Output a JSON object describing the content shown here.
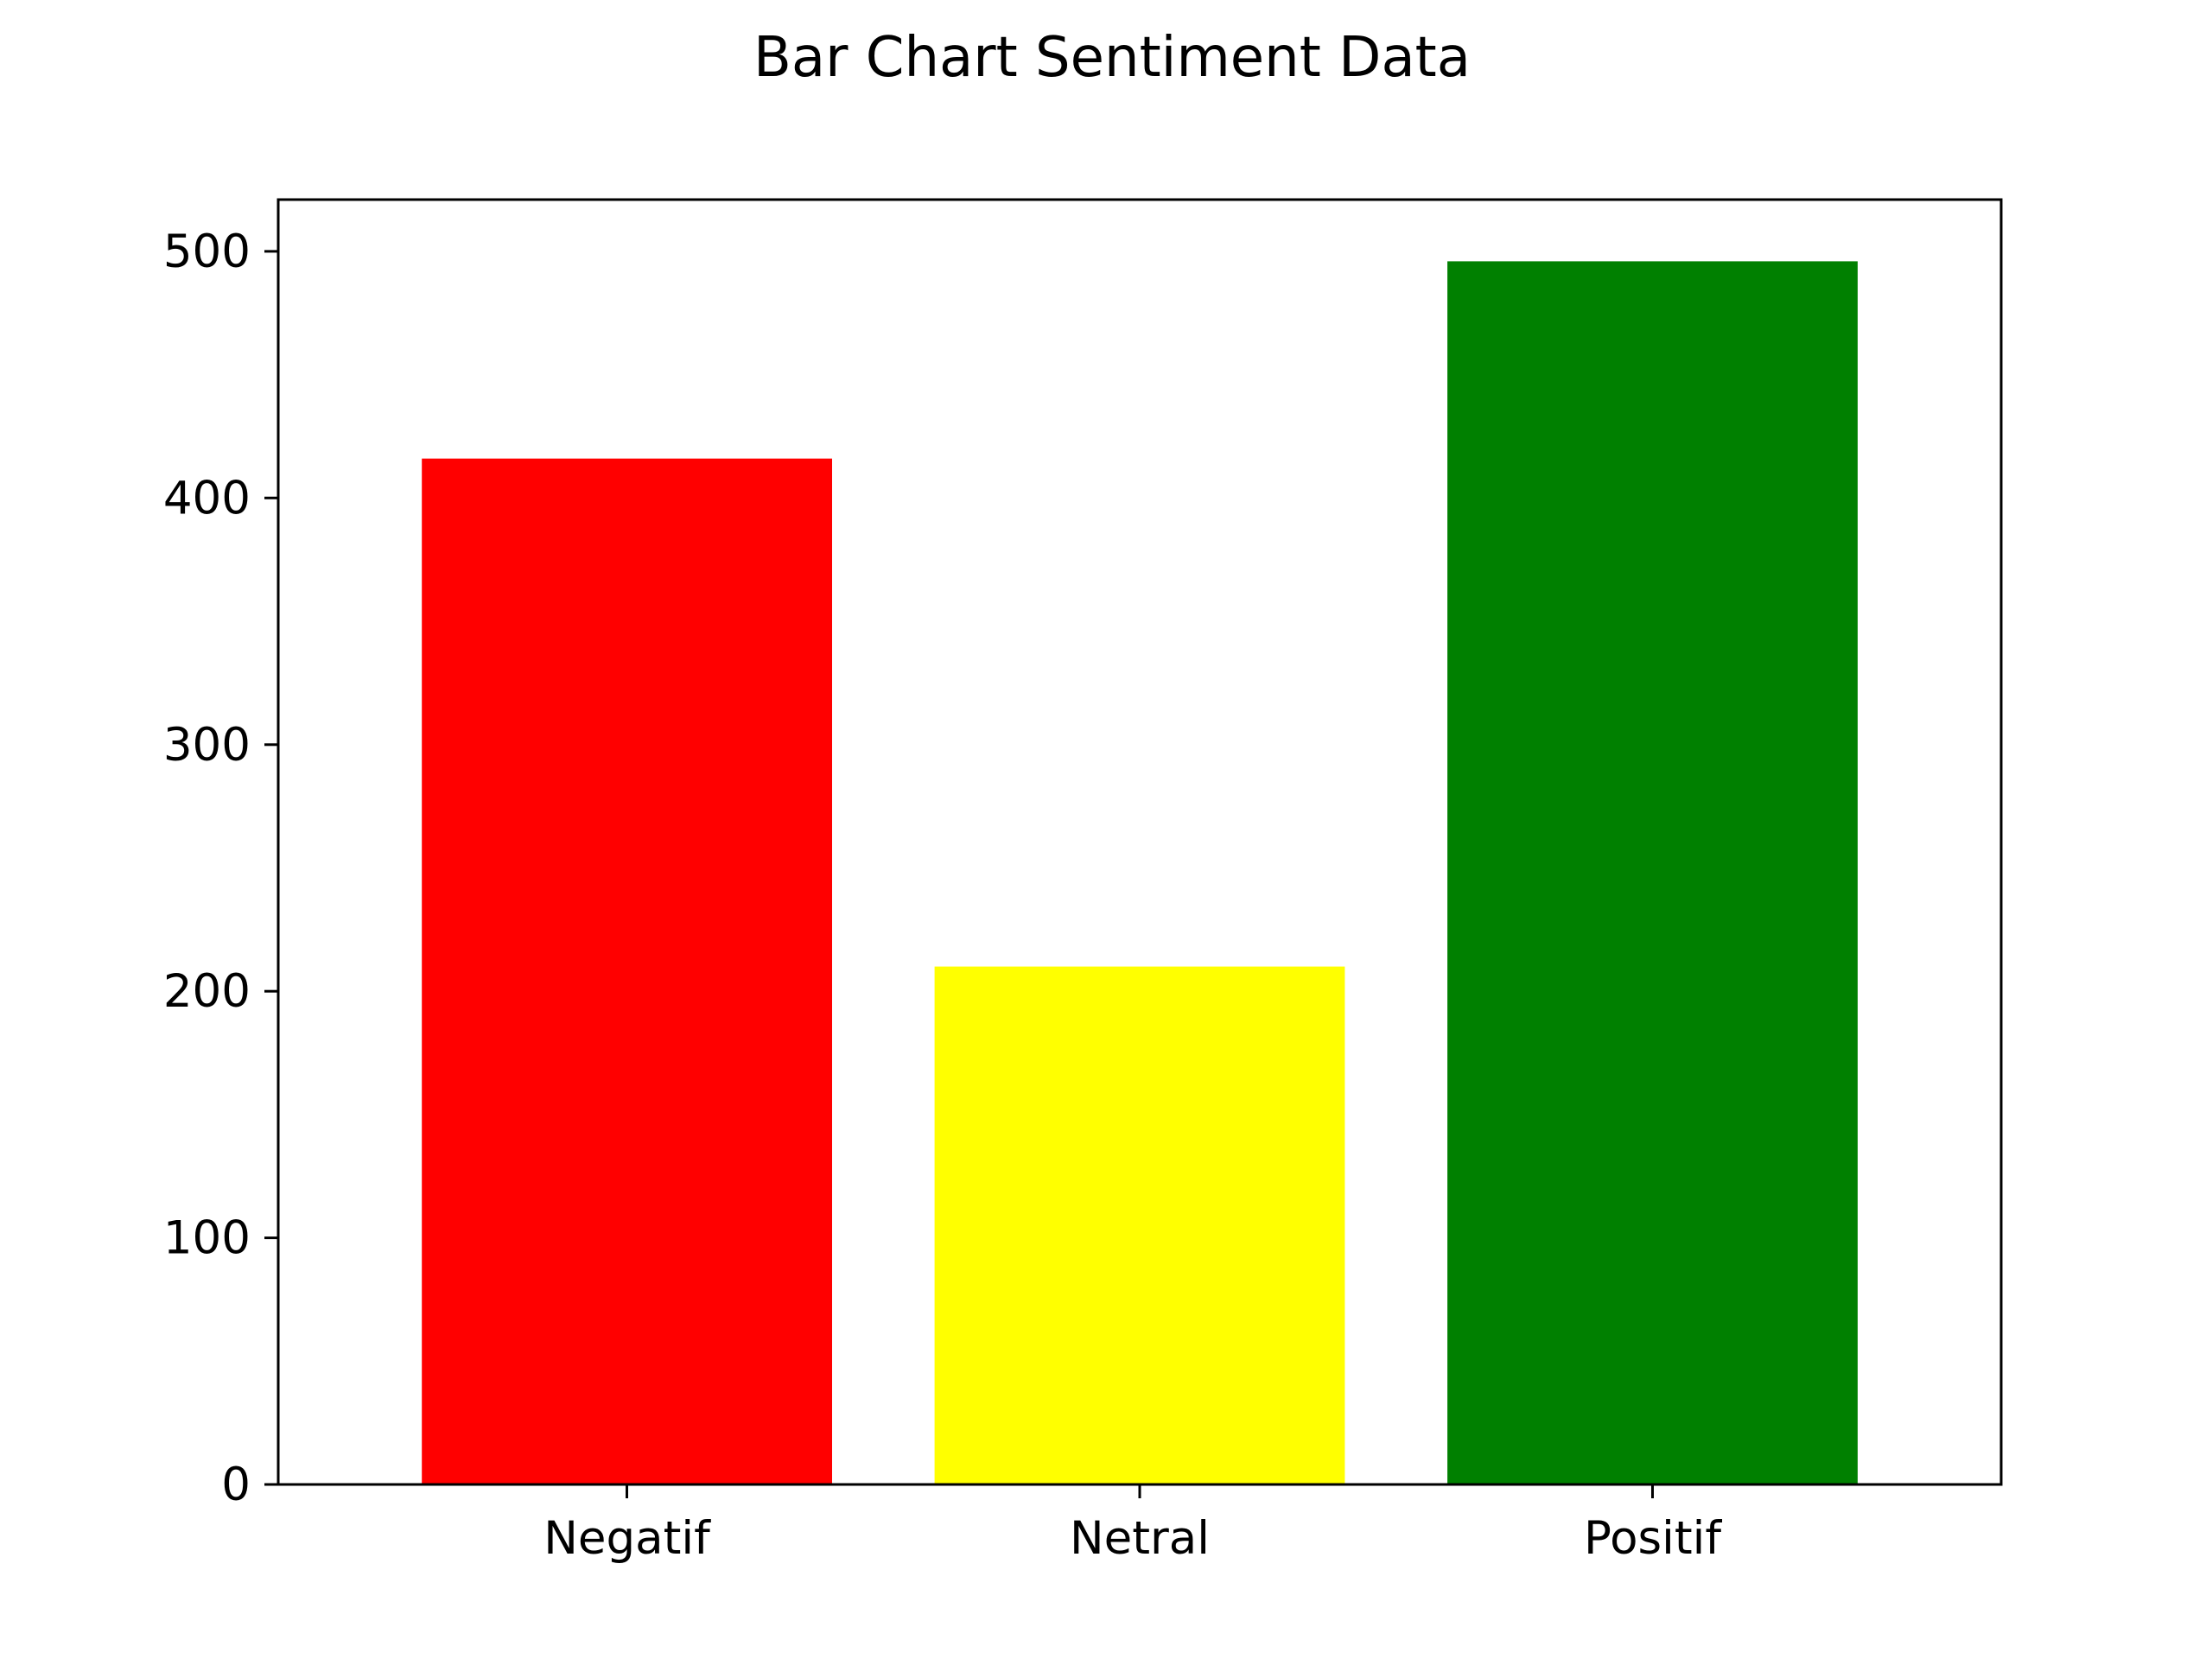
{
  "chart_data": {
    "type": "bar",
    "title": "Bar Chart Sentiment Data",
    "xlabel": "",
    "ylabel": "",
    "categories": [
      "Negatif",
      "Netral",
      "Positif"
    ],
    "values": [
      416,
      210,
      496
    ],
    "colors": [
      "#ff0000",
      "#ffff00",
      "#008000"
    ],
    "ylim": [
      0,
      521
    ],
    "yticks": [
      0,
      100,
      200,
      300,
      400,
      500
    ],
    "ytick_labels": [
      "0",
      "100",
      "200",
      "300",
      "400",
      "500"
    ],
    "grid": false,
    "legend": false
  }
}
